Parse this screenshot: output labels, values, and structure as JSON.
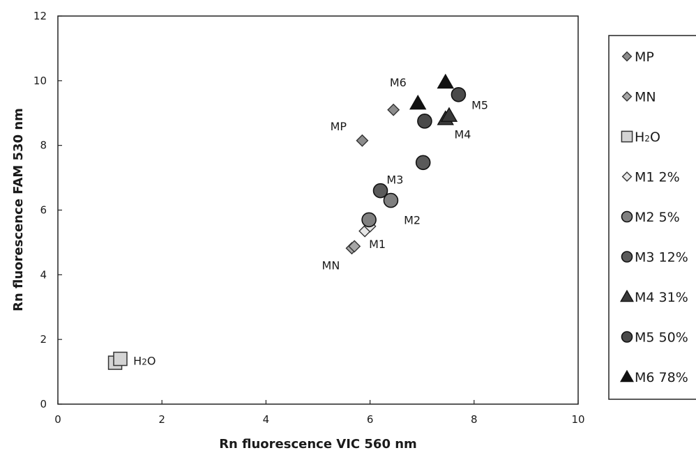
{
  "chart_data": {
    "type": "scatter",
    "title": "",
    "xlabel": "Rn fluorescence VIC 560 nm",
    "ylabel": "Rn fluorescence FAM 530 nm",
    "xlim": [
      0,
      10
    ],
    "ylim": [
      0,
      12
    ],
    "xticks": [
      "0",
      "2",
      "4",
      "6",
      "8",
      "10"
    ],
    "yticks": [
      "0",
      "2",
      "4",
      "6",
      "8",
      "10",
      "12"
    ],
    "grid": false,
    "legend_position": "right",
    "colors": {
      "MP": "#8c8c8c",
      "MN": "#a6a6a6",
      "H2O": "#d4d4d4",
      "M1": "#e6e6e6",
      "M2": "#808080",
      "M3": "#5a5a5a",
      "M4": "#3a3a3a",
      "M5": "#4a4a4a",
      "M6": "#111111"
    },
    "series": [
      {
        "key": "MP",
        "name": "MP",
        "marker": "diamond",
        "points": [
          [
            5.85,
            8.15
          ],
          [
            6.45,
            9.1
          ]
        ]
      },
      {
        "key": "MN",
        "name": "MN",
        "marker": "diamond",
        "points": [
          [
            5.65,
            4.82
          ],
          [
            5.7,
            4.88
          ]
        ]
      },
      {
        "key": "H2O",
        "name": "H₂O",
        "legend_main": "H",
        "legend_sub": "2",
        "legend_tail": "O",
        "marker": "square",
        "points": [
          [
            1.1,
            1.28
          ],
          [
            1.2,
            1.4
          ]
        ]
      },
      {
        "key": "M1",
        "name": "M1 2%",
        "marker": "diamond",
        "points": [
          [
            5.9,
            5.35
          ],
          [
            6.0,
            5.5
          ]
        ]
      },
      {
        "key": "M2",
        "name": "M2 5%",
        "marker": "circle",
        "points": [
          [
            5.98,
            5.7
          ],
          [
            6.4,
            6.3
          ]
        ]
      },
      {
        "key": "M3",
        "name": "M3 12%",
        "marker": "circle",
        "points": [
          [
            6.2,
            6.6
          ],
          [
            7.02,
            7.47
          ]
        ]
      },
      {
        "key": "M4",
        "name": "M4 31%",
        "marker": "triangle",
        "points": [
          [
            7.45,
            8.82
          ],
          [
            7.52,
            8.92
          ]
        ]
      },
      {
        "key": "M5",
        "name": "M5 50%",
        "marker": "circle",
        "points": [
          [
            7.05,
            8.75
          ],
          [
            7.7,
            9.57
          ]
        ]
      },
      {
        "key": "M6",
        "name": "M6 78%",
        "marker": "triangle",
        "points": [
          [
            6.92,
            9.3
          ],
          [
            7.45,
            9.95
          ]
        ]
      }
    ],
    "annotations": [
      {
        "key": "M6",
        "text": "M6",
        "x": 6.7,
        "y": 9.95,
        "anchor": "end"
      },
      {
        "key": "M5",
        "text": "M5",
        "x": 7.95,
        "y": 9.25,
        "anchor": "start"
      },
      {
        "key": "MP",
        "text": "MP",
        "x": 5.55,
        "y": 8.6,
        "anchor": "end"
      },
      {
        "key": "M4",
        "text": "M4",
        "x": 7.62,
        "y": 8.35,
        "anchor": "start"
      },
      {
        "key": "M3",
        "text": "M3",
        "x": 6.48,
        "y": 6.95,
        "anchor": "middle"
      },
      {
        "key": "M2",
        "text": "M2",
        "x": 6.65,
        "y": 5.7,
        "anchor": "start"
      },
      {
        "key": "M1",
        "text": "M1",
        "x": 5.98,
        "y": 4.95,
        "anchor": "start"
      },
      {
        "key": "MN",
        "text": "MN",
        "x": 5.42,
        "y": 4.3,
        "anchor": "end"
      },
      {
        "key": "H2O",
        "text": "H₂O",
        "main": "H",
        "sub": "2",
        "tail": "O",
        "x": 1.45,
        "y": 1.35,
        "anchor": "start"
      }
    ]
  }
}
